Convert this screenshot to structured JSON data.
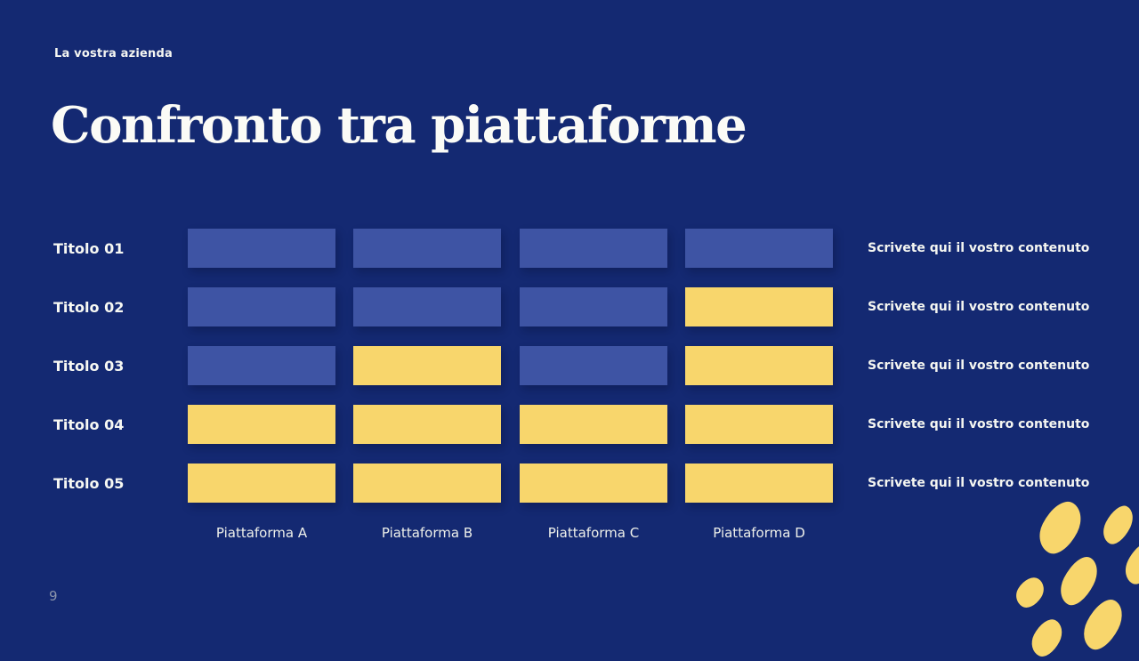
{
  "slide": {
    "eyebrow": "La vostra azienda",
    "title": "Confronto tra piattaforme",
    "page_number": "9"
  },
  "table": {
    "columns": [
      "Piattaforma A",
      "Piattaforma B",
      "Piattaforma C",
      "Piattaforma D"
    ],
    "rows": [
      {
        "label": "Titolo 01",
        "cells": [
          "blue",
          "blue",
          "blue",
          "blue"
        ],
        "note": "Scrivete qui il vostro contenuto"
      },
      {
        "label": "Titolo 02",
        "cells": [
          "blue",
          "blue",
          "blue",
          "yellow"
        ],
        "note": "Scrivete qui il vostro contenuto"
      },
      {
        "label": "Titolo 03",
        "cells": [
          "blue",
          "yellow",
          "blue",
          "yellow"
        ],
        "note": "Scrivete qui il vostro contenuto"
      },
      {
        "label": "Titolo 04",
        "cells": [
          "yellow",
          "yellow",
          "yellow",
          "yellow"
        ],
        "note": "Scrivete qui il vostro contenuto"
      },
      {
        "label": "Titolo 05",
        "cells": [
          "yellow",
          "yellow",
          "yellow",
          "yellow"
        ],
        "note": "Scrivete qui il vostro contenuto"
      }
    ]
  },
  "colors": {
    "background": "#142972",
    "cell_blue": "#3E54A4",
    "cell_yellow": "#F8D66C",
    "text": "#FFFFFF",
    "page_number": "#8C95AB"
  }
}
